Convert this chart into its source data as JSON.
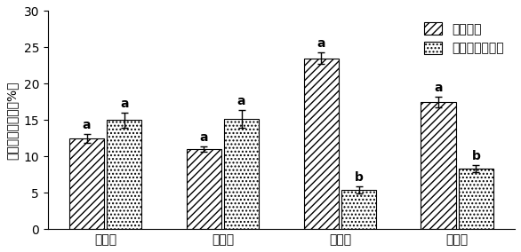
{
  "categories": [
    "拔节期",
    "抽稗期",
    "灣浆期",
    "乳熟期"
  ],
  "series1_values": [
    12.5,
    11.0,
    23.5,
    17.5
  ],
  "series2_values": [
    15.0,
    15.2,
    5.4,
    8.3
  ],
  "series1_errors": [
    0.6,
    0.4,
    0.8,
    0.7
  ],
  "series2_errors": [
    1.0,
    1.2,
    0.5,
    0.5
  ],
  "series1_label": "水稻单作",
  "series2_label": "水稻与慈姑间作",
  "series1_sig": [
    "a",
    "a",
    "a",
    "a"
  ],
  "series2_sig": [
    "a",
    "a",
    "b",
    "b"
  ],
  "ylabel": "有效茎赙病叶率（%）",
  "ylim": [
    0,
    30
  ],
  "yticks": [
    0,
    5,
    10,
    15,
    20,
    25,
    30
  ],
  "bar_width": 0.3,
  "series1_hatch": "////",
  "series2_hatch": "....",
  "series1_facecolor": "#ffffff",
  "series2_facecolor": "#ffffff",
  "edgecolor": "#000000",
  "sig_fontsize": 10,
  "label_fontsize": 10,
  "tick_fontsize": 10,
  "legend_fontsize": 10
}
